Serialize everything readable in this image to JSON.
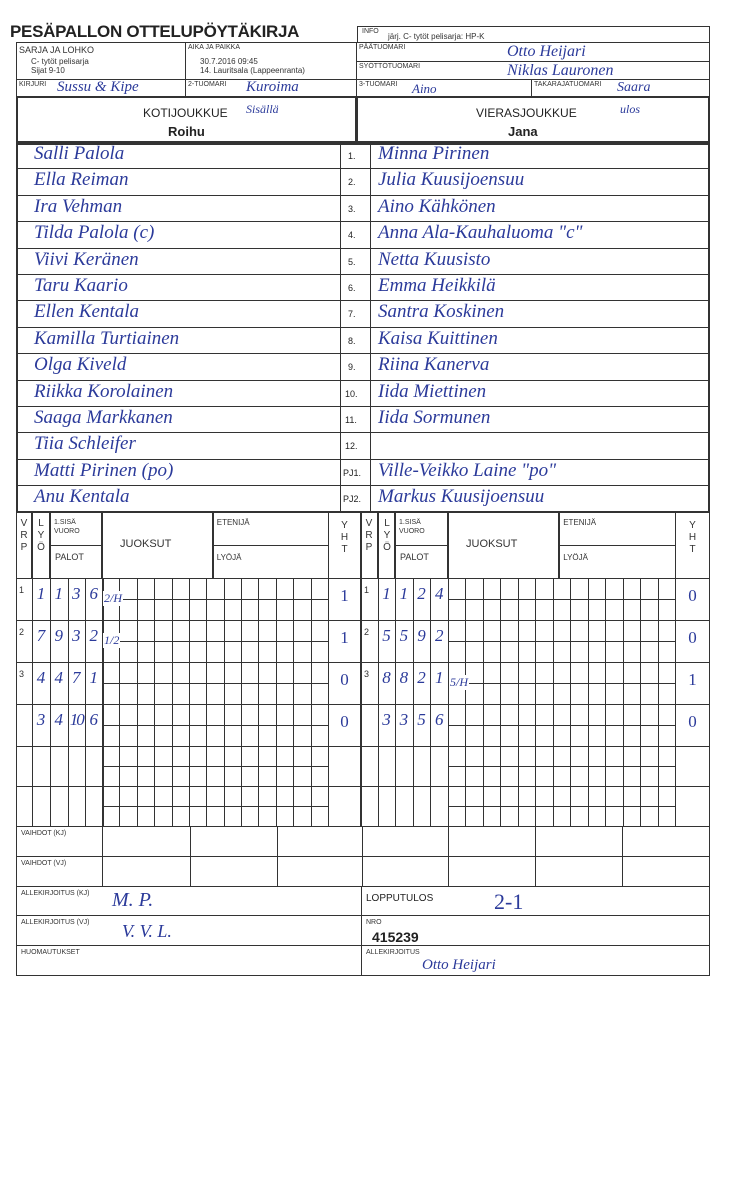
{
  "title": "PESÄPALLON OTTELUPÖYTÄKIRJA",
  "info": {
    "label": "INFO",
    "value": "järj. C- tytöt pelisarja: HP-K"
  },
  "sarja": {
    "label": "SARJA JA LOHKO",
    "line1": "C- tytöt pelisarja",
    "line2": "Sijat 9-10"
  },
  "aika": {
    "label": "AIKA JA PAIKKA",
    "line1": "30.7.2016 09:45",
    "line2": "14. Lauritsala (Lappeenranta)"
  },
  "paatuomari": {
    "label": "PÄÄTUOMARI",
    "value": "Otto Heijari"
  },
  "syottotuomari": {
    "label": "SYÖTTÖTUOMARI",
    "value": "Niklas Lauronen"
  },
  "kirjuri": {
    "label": "KIRJURI",
    "value": "Sussu & Kipe"
  },
  "tuomari2": {
    "label": "2-TUOMARI",
    "value": "Kuroima"
  },
  "tuomari3": {
    "label": "3-TUOMARI",
    "value": "Aino"
  },
  "takaraja": {
    "label": "TAKARAJATUOMARI",
    "value": "Saara"
  },
  "home": {
    "label": "KOTIJOUKKUE",
    "note": "Sisällä",
    "name": "Roihu"
  },
  "away": {
    "label": "VIERASJOUKKUE",
    "note": "ulos",
    "name": "Jana"
  },
  "numbers": [
    "1.",
    "2.",
    "3.",
    "4.",
    "5.",
    "6.",
    "7.",
    "8.",
    "9.",
    "10.",
    "11.",
    "12.",
    "PJ1.",
    "PJ2."
  ],
  "home_players": [
    "Salli Palola",
    "Ella Reiman",
    "Ira Vehman",
    "Tilda Palola (c)",
    "Viivi Keränen",
    "Taru Kaario",
    "Ellen Kentala",
    "Kamilla Turtiainen",
    "Olga Kiveld",
    "Riikka Korolainen",
    "Saaga Markkanen",
    "Tiia Schleifer",
    "Matti Pirinen (po)",
    "Anu Kentala"
  ],
  "away_players": [
    "Minna Pirinen",
    "Julia Kuusijoensuu",
    "Aino Kähkönen",
    "Anna Ala-Kauhaluoma \"c\"",
    "Netta Kuusisto",
    "Emma Heikkilä",
    "Santra Koskinen",
    "Kaisa Kuittinen",
    "Riina Kanerva",
    "Iida Miettinen",
    "Iida Sormunen",
    "",
    "Ville-Veikko Laine \"po\"",
    "Markus Kuusijoensuu"
  ],
  "score_header": {
    "vrp": "V R P",
    "lyo": "L Y Ö",
    "sisa": "1.SISÄ VUORO",
    "palot": "PALOT",
    "juoksut": "JUOKSUT",
    "etenija": "ETENIJÄ",
    "lyoja": "LYÖJÄ",
    "yht": "Y H T"
  },
  "home_innings": [
    {
      "vrp": "1",
      "cells": [
        "1",
        "1",
        "3",
        "6"
      ],
      "runs": "2/H",
      "yht": "1"
    },
    {
      "vrp": "2",
      "cells": [
        "7",
        "9",
        "3",
        "2"
      ],
      "runs": "1/2",
      "yht": "1"
    },
    {
      "vrp": "3",
      "cells": [
        "4",
        "4",
        "7",
        "1"
      ],
      "runs": "",
      "yht": "0"
    },
    {
      "vrp": "",
      "cells": [
        "3",
        "4",
        "10",
        "6"
      ],
      "runs": "",
      "yht": "0"
    }
  ],
  "away_innings": [
    {
      "vrp": "1",
      "cells": [
        "1",
        "1",
        "2",
        "4"
      ],
      "runs": "",
      "yht": "0"
    },
    {
      "vrp": "2",
      "cells": [
        "5",
        "5",
        "9",
        "2"
      ],
      "runs": "",
      "yht": "0"
    },
    {
      "vrp": "3",
      "cells": [
        "8",
        "8",
        "2",
        "1"
      ],
      "runs": "5/H",
      "yht": "1"
    },
    {
      "vrp": "",
      "cells": [
        "3",
        "3",
        "5",
        "6"
      ],
      "runs": "",
      "yht": "0"
    }
  ],
  "vaihdot_kj": "VAIHDOT (KJ)",
  "vaihdot_vj": "VAIHDOT (VJ)",
  "allekirjoitus_kj": "ALLEKIRJOITUS (KJ)",
  "allekirjoitus_vj": "ALLEKIRJOITUS (VJ)",
  "huomautukset": "HUOMAUTUKSET",
  "lopputulos": {
    "label": "LOPPUTULOS",
    "value": "2-1"
  },
  "nro": {
    "label": "NRO",
    "value": "415239"
  },
  "allekirjoitus": {
    "label": "ALLEKIRJOITUS",
    "value": "Otto Heijari"
  },
  "ink_color": "#2b3a9a"
}
